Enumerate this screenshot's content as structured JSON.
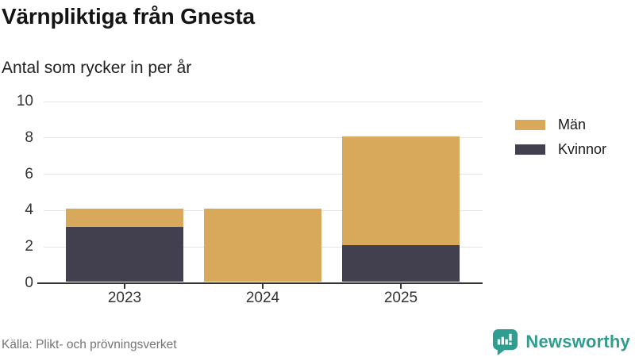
{
  "header": {
    "title": "Värnpliktiga från Gnesta",
    "subtitle": "Antal som rycker in per år"
  },
  "chart_data": {
    "type": "bar",
    "stacked": true,
    "title": "Värnpliktiga från Gnesta",
    "subtitle": "Antal som rycker in per år",
    "categories": [
      "2023",
      "2024",
      "2025"
    ],
    "series": [
      {
        "name": "Män",
        "color": "#D9A95B",
        "values": [
          1,
          4,
          6
        ]
      },
      {
        "name": "Kvinnor",
        "color": "#42404F",
        "values": [
          3,
          0,
          2
        ]
      }
    ],
    "totals": [
      4,
      4,
      8
    ],
    "xlabel": "",
    "ylabel": "",
    "ylim": [
      0,
      10
    ],
    "yticks": [
      0,
      2,
      4,
      6,
      8,
      10
    ],
    "grid": true,
    "legend_position": "right"
  },
  "footer": {
    "source": "Källa: Plikt- och prövningsverket",
    "brand": "Newsworthy"
  },
  "colors": {
    "men": "#D9A95B",
    "women": "#42404F",
    "brand_teal": "#2F9D90",
    "grid": "#E4E4E4",
    "axis": "#333333"
  }
}
